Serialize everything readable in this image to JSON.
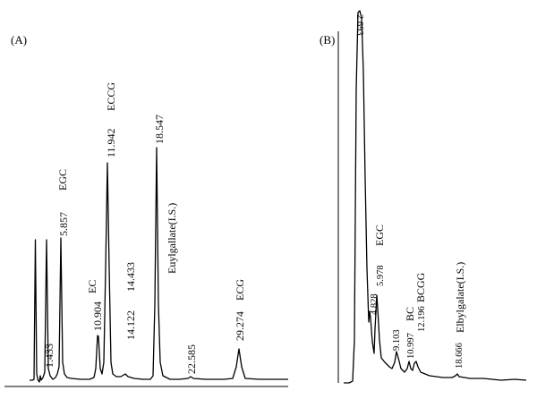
{
  "chart_data": [
    {
      "type": "line",
      "panel_label": "(A)",
      "peaks": [
        {
          "label": "1.433",
          "rt": 1.433
        },
        {
          "label": "EGC",
          "rt": 5.857
        },
        {
          "label": "5.857",
          "rt": 5.857
        },
        {
          "label": "EC",
          "rt": 10.904
        },
        {
          "label": "10.904",
          "rt": 10.904
        },
        {
          "label": "ECCG",
          "rt": 11.942
        },
        {
          "label": "11.942",
          "rt": 11.942
        },
        {
          "label": "14.122",
          "rt": 14.122
        },
        {
          "label": "14.433",
          "rt": 14.433
        },
        {
          "label": "18.547",
          "rt": 18.547
        },
        {
          "label": "Euylgallate(I.S.)",
          "rt": 18.547
        },
        {
          "label": "22.585",
          "rt": 22.585
        },
        {
          "label": "ECG",
          "rt": 29.274
        },
        {
          "label": "29.274",
          "rt": 29.274
        }
      ]
    },
    {
      "type": "line",
      "panel_label": "(B)",
      "peaks": [
        {
          "label": "2.693",
          "rt": 2.693
        },
        {
          "label": "EGC",
          "rt": 5.978
        },
        {
          "label": "5.978",
          "rt": 5.978
        },
        {
          "label": "4.828",
          "rt": 4.828
        },
        {
          "label": "BC",
          "rt": 10.997
        },
        {
          "label": "9.103",
          "rt": 9.103
        },
        {
          "label": "10.997",
          "rt": 10.997
        },
        {
          "label": "12.196",
          "rt": 12.196
        },
        {
          "label": "BCGG",
          "rt": 12.196
        },
        {
          "label": "18.666",
          "rt": 18.666
        },
        {
          "label": "Elbylgalate(I.S.)",
          "rt": 18.666
        }
      ]
    }
  ]
}
